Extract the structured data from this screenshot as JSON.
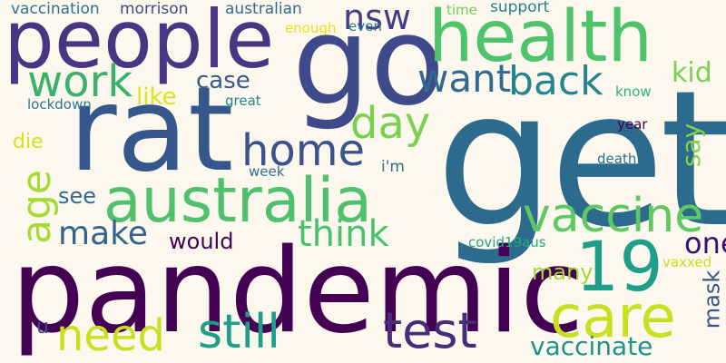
{
  "background": "#fcf8ee",
  "words": [
    {
      "text": "get",
      "color": "#2d6b8e"
    },
    {
      "text": "pandemic",
      "color": "#440154"
    },
    {
      "text": "go",
      "color": "#3e4a89"
    },
    {
      "text": "rat",
      "color": "#35578b"
    },
    {
      "text": "people",
      "color": "#453781"
    },
    {
      "text": "health",
      "color": "#4ec36b"
    },
    {
      "text": "australia",
      "color": "#4fc06c"
    },
    {
      "text": "vaccine",
      "color": "#5ec962"
    },
    {
      "text": "care",
      "color": "#c8e020"
    },
    {
      "text": "19",
      "color": "#1f9e89"
    },
    {
      "text": "test",
      "color": "#472c7a"
    },
    {
      "text": "still",
      "color": "#1f9e89"
    },
    {
      "text": "need",
      "color": "#c8e020"
    },
    {
      "text": "home",
      "color": "#3b528b"
    },
    {
      "text": "work",
      "color": "#3ab26e"
    },
    {
      "text": "want",
      "color": "#306a8e"
    },
    {
      "text": "back",
      "color": "#25848e"
    },
    {
      "text": "day",
      "color": "#7ad151"
    },
    {
      "text": "nsw",
      "color": "#433e85"
    },
    {
      "text": "think",
      "color": "#4ac16d"
    },
    {
      "text": "make",
      "color": "#32648e"
    },
    {
      "text": "age",
      "color": "#a5db36"
    },
    {
      "text": "one",
      "color": "#3b0f70"
    },
    {
      "text": "vaccinate",
      "color": "#21918c"
    },
    {
      "text": "would",
      "color": "#440154"
    },
    {
      "text": "case",
      "color": "#38598c"
    },
    {
      "text": "like",
      "color": "#e0e31a"
    },
    {
      "text": "kid",
      "color": "#7ad151"
    },
    {
      "text": "say",
      "color": "#83d34b"
    },
    {
      "text": "many",
      "color": "#a2da37"
    },
    {
      "text": "mask",
      "color": "#39568c"
    },
    {
      "text": "see",
      "color": "#306a8e"
    },
    {
      "text": "die",
      "color": "#d8e219"
    },
    {
      "text": "u",
      "color": "#3e4a89"
    },
    {
      "text": "vaccination",
      "color": "#2c728e"
    },
    {
      "text": "morrison",
      "color": "#3e4a89"
    },
    {
      "text": "australian",
      "color": "#2f6c8e"
    },
    {
      "text": "time",
      "color": "#6ccd5a"
    },
    {
      "text": "support",
      "color": "#27808e"
    },
    {
      "text": "enough",
      "color": "#e5e419"
    },
    {
      "text": "even",
      "color": "#287c8e"
    },
    {
      "text": "lockdown",
      "color": "#2a788e"
    },
    {
      "text": "great",
      "color": "#25858e"
    },
    {
      "text": "know",
      "color": "#2eb37c"
    },
    {
      "text": "year",
      "color": "#440154"
    },
    {
      "text": "death",
      "color": "#2c718e"
    },
    {
      "text": "week",
      "color": "#2c718e"
    },
    {
      "text": "i'm",
      "color": "#306a8e"
    },
    {
      "text": "covid19aus",
      "color": "#22a884"
    },
    {
      "text": "vaxxed",
      "color": "#c8e020"
    }
  ]
}
